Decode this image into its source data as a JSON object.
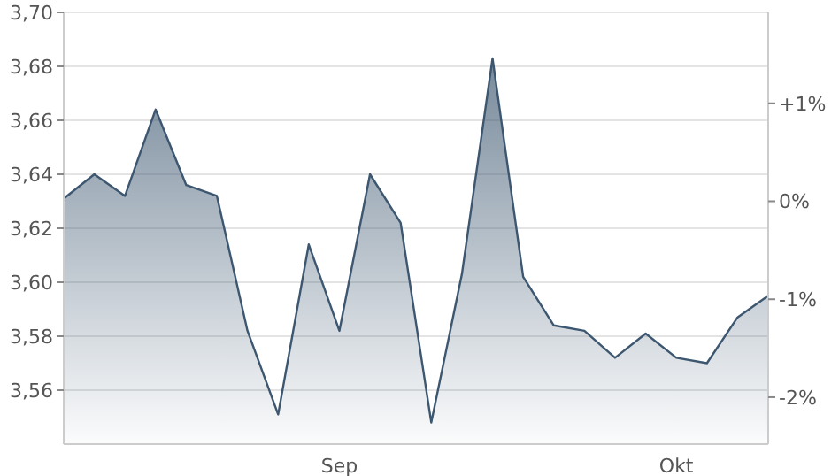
{
  "chart_data": {
    "type": "area",
    "categories": [
      null,
      null,
      null,
      null,
      null,
      null,
      null,
      null,
      null,
      "Sep",
      null,
      null,
      null,
      null,
      null,
      null,
      null,
      null,
      null,
      null,
      "Okt",
      null,
      null,
      null
    ],
    "series": [
      {
        "color": "#3d5770",
        "values": [
          3.631,
          3.64,
          3.632,
          3.664,
          3.636,
          3.632,
          3.582,
          3.551,
          3.614,
          3.582,
          3.64,
          3.622,
          3.548,
          3.603,
          3.683,
          3.602,
          3.584,
          3.582,
          3.572,
          3.581,
          3.572,
          3.57,
          3.587,
          3.595
        ]
      }
    ],
    "ylim": [
      3.54,
      3.7
    ],
    "yticks": [
      {
        "value": 3.56,
        "label": "3,56"
      },
      {
        "value": 3.58,
        "label": "3,58"
      },
      {
        "value": 3.6,
        "label": "3,60"
      },
      {
        "value": 3.62,
        "label": "3,62"
      },
      {
        "value": 3.64,
        "label": "3,64"
      },
      {
        "value": 3.66,
        "label": "3,66"
      },
      {
        "value": 3.68,
        "label": "3,68"
      },
      {
        "value": 3.7,
        "label": "3,70"
      }
    ],
    "y2lim": [
      -2.479,
      1.928
    ],
    "y2ticks": [
      {
        "value": -2,
        "label": "-2%"
      },
      {
        "value": -1,
        "label": "-1%"
      },
      {
        "value": 0,
        "label": "0%"
      },
      {
        "value": 1,
        "label": "+1%"
      }
    ],
    "grid": "y",
    "legend": false
  }
}
